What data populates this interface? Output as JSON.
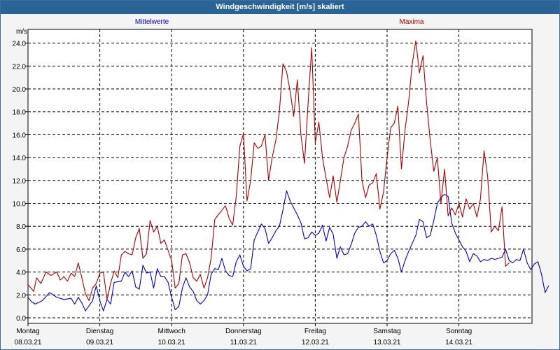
{
  "window": {
    "title": "Windgeschwindigkeit [m/s] skaliert"
  },
  "chart_data": {
    "type": "line",
    "unit_label": "m/s",
    "ylim": [
      0,
      25.2
    ],
    "yticks": [
      0.0,
      2.0,
      4.0,
      6.0,
      8.0,
      10.0,
      12.0,
      14.0,
      16.0,
      18.0,
      20.0,
      22.0,
      24.0
    ],
    "ytick_labels": [
      "0.0",
      "2.0",
      "4.0",
      "6.0",
      "8.0",
      "10.0",
      "12.0",
      "14.0",
      "16.0",
      "18.0",
      "20.0",
      "22.0",
      "24.0"
    ],
    "xlim": [
      0,
      7
    ],
    "days": [
      {
        "day": "Montag",
        "date": "08.03.21"
      },
      {
        "day": "Dienstag",
        "date": "09.03.21"
      },
      {
        "day": "Mittwoch",
        "date": "10.03.21"
      },
      {
        "day": "Donnerstag",
        "date": "11.03.21"
      },
      {
        "day": "Freitag",
        "date": "12.03.21"
      },
      {
        "day": "Samstag",
        "date": "13.03.21"
      },
      {
        "day": "Sonntag",
        "date": "14.03.21"
      }
    ],
    "grid": true,
    "series": [
      {
        "name": "Mittelwerte",
        "color": "#0000cc",
        "points": [
          [
            0.0,
            1.8
          ],
          [
            0.05,
            1.4
          ],
          [
            0.1,
            1.2
          ],
          [
            0.2,
            1.5
          ],
          [
            0.3,
            2.2
          ],
          [
            0.4,
            1.8
          ],
          [
            0.5,
            1.6
          ],
          [
            0.6,
            1.7
          ],
          [
            0.65,
            1.2
          ],
          [
            0.7,
            1.8
          ],
          [
            0.75,
            1.3
          ],
          [
            0.8,
            0.6
          ],
          [
            0.9,
            1.5
          ],
          [
            0.95,
            2.8
          ],
          [
            1.0,
            1.5
          ],
          [
            1.05,
            0.6
          ],
          [
            1.1,
            1.6
          ],
          [
            1.15,
            1.2
          ],
          [
            1.2,
            3.1
          ],
          [
            1.3,
            3.2
          ],
          [
            1.35,
            4.0
          ],
          [
            1.4,
            3.6
          ],
          [
            1.45,
            4.1
          ],
          [
            1.5,
            2.7
          ],
          [
            1.55,
            2.5
          ],
          [
            1.6,
            4.6
          ],
          [
            1.65,
            3.9
          ],
          [
            1.7,
            4.0
          ],
          [
            1.75,
            2.6
          ],
          [
            1.8,
            4.3
          ],
          [
            1.85,
            3.6
          ],
          [
            1.9,
            3.6
          ],
          [
            1.95,
            3.1
          ],
          [
            2.0,
            1.8
          ],
          [
            2.05,
            0.7
          ],
          [
            2.1,
            1.0
          ],
          [
            2.15,
            2.6
          ],
          [
            2.2,
            3.5
          ],
          [
            2.25,
            2.7
          ],
          [
            2.3,
            2.3
          ],
          [
            2.35,
            1.5
          ],
          [
            2.4,
            1.2
          ],
          [
            2.45,
            1.5
          ],
          [
            2.5,
            2.0
          ],
          [
            2.55,
            3.8
          ],
          [
            2.6,
            4.3
          ],
          [
            2.65,
            4.2
          ],
          [
            2.7,
            5.2
          ],
          [
            2.75,
            4.1
          ],
          [
            2.8,
            3.7
          ],
          [
            2.85,
            3.6
          ],
          [
            2.9,
            4.9
          ],
          [
            2.95,
            5.5
          ],
          [
            3.0,
            4.5
          ],
          [
            3.05,
            4.1
          ],
          [
            3.1,
            4.3
          ],
          [
            3.15,
            6.8
          ],
          [
            3.2,
            7.5
          ],
          [
            3.25,
            8.2
          ],
          [
            3.3,
            7.8
          ],
          [
            3.35,
            6.5
          ],
          [
            3.4,
            7.0
          ],
          [
            3.45,
            7.6
          ],
          [
            3.5,
            8.0
          ],
          [
            3.55,
            9.4
          ],
          [
            3.6,
            11.1
          ],
          [
            3.65,
            10.2
          ],
          [
            3.7,
            9.6
          ],
          [
            3.75,
            9.0
          ],
          [
            3.8,
            8.3
          ],
          [
            3.85,
            6.9
          ],
          [
            3.9,
            7.0
          ],
          [
            3.95,
            7.5
          ],
          [
            4.0,
            7.2
          ],
          [
            4.05,
            7.4
          ],
          [
            4.1,
            8.1
          ],
          [
            4.15,
            6.7
          ],
          [
            4.2,
            7.9
          ],
          [
            4.25,
            7.3
          ],
          [
            4.3,
            5.2
          ],
          [
            4.35,
            6.2
          ],
          [
            4.4,
            5.5
          ],
          [
            4.45,
            5.6
          ],
          [
            4.5,
            6.4
          ],
          [
            4.55,
            7.4
          ],
          [
            4.6,
            7.9
          ],
          [
            4.65,
            8.0
          ],
          [
            4.7,
            8.4
          ],
          [
            4.75,
            8.0
          ],
          [
            4.8,
            8.2
          ],
          [
            4.85,
            7.2
          ],
          [
            4.9,
            5.8
          ],
          [
            4.95,
            4.8
          ],
          [
            5.0,
            5.0
          ],
          [
            5.05,
            5.6
          ],
          [
            5.1,
            5.9
          ],
          [
            5.15,
            5.2
          ],
          [
            5.2,
            4.0
          ],
          [
            5.25,
            5.0
          ],
          [
            5.3,
            5.8
          ],
          [
            5.35,
            6.5
          ],
          [
            5.4,
            7.2
          ],
          [
            5.45,
            8.6
          ],
          [
            5.5,
            8.4
          ],
          [
            5.55,
            7.0
          ],
          [
            5.6,
            7.2
          ],
          [
            5.65,
            8.5
          ],
          [
            5.7,
            10.0
          ],
          [
            5.75,
            10.5
          ],
          [
            5.8,
            10.8
          ],
          [
            5.85,
            10.6
          ],
          [
            5.9,
            8.3
          ],
          [
            5.95,
            7.4
          ],
          [
            6.0,
            6.8
          ],
          [
            6.05,
            6.2
          ],
          [
            6.1,
            5.8
          ],
          [
            6.15,
            4.9
          ],
          [
            6.2,
            5.6
          ],
          [
            6.25,
            5.4
          ],
          [
            6.3,
            4.9
          ],
          [
            6.35,
            5.1
          ],
          [
            6.4,
            5.0
          ],
          [
            6.45,
            5.2
          ],
          [
            6.5,
            5.1
          ],
          [
            6.55,
            5.2
          ],
          [
            6.6,
            5.3
          ],
          [
            6.65,
            6.0
          ],
          [
            6.7,
            5.0
          ],
          [
            6.75,
            4.8
          ],
          [
            6.8,
            5.1
          ],
          [
            6.85,
            5.0
          ],
          [
            6.9,
            6.0
          ],
          [
            6.95,
            4.8
          ],
          [
            7.0,
            4.2
          ],
          [
            7.05,
            4.7
          ],
          [
            7.1,
            4.9
          ],
          [
            7.15,
            3.8
          ],
          [
            7.2,
            2.2
          ],
          [
            7.25,
            2.8
          ]
        ]
      },
      {
        "name": "Maxima",
        "color": "#aa0000",
        "points": [
          [
            0.0,
            2.9
          ],
          [
            0.08,
            2.3
          ],
          [
            0.12,
            3.5
          ],
          [
            0.18,
            3.0
          ],
          [
            0.25,
            4.0
          ],
          [
            0.32,
            3.7
          ],
          [
            0.4,
            4.0
          ],
          [
            0.45,
            3.3
          ],
          [
            0.5,
            3.6
          ],
          [
            0.55,
            3.2
          ],
          [
            0.6,
            3.9
          ],
          [
            0.65,
            3.6
          ],
          [
            0.7,
            4.8
          ],
          [
            0.75,
            3.5
          ],
          [
            0.8,
            2.1
          ],
          [
            0.85,
            1.5
          ],
          [
            0.9,
            2.6
          ],
          [
            0.95,
            3.0
          ],
          [
            1.0,
            3.9
          ],
          [
            1.05,
            4.0
          ],
          [
            1.1,
            1.6
          ],
          [
            1.15,
            3.0
          ],
          [
            1.2,
            4.1
          ],
          [
            1.25,
            3.5
          ],
          [
            1.3,
            5.5
          ],
          [
            1.35,
            5.8
          ],
          [
            1.4,
            5.6
          ],
          [
            1.45,
            5.5
          ],
          [
            1.5,
            7.0
          ],
          [
            1.55,
            7.8
          ],
          [
            1.6,
            5.2
          ],
          [
            1.65,
            5.6
          ],
          [
            1.7,
            8.5
          ],
          [
            1.75,
            7.5
          ],
          [
            1.8,
            8.0
          ],
          [
            1.85,
            6.5
          ],
          [
            1.9,
            6.8
          ],
          [
            1.95,
            5.9
          ],
          [
            2.0,
            5.0
          ],
          [
            2.05,
            2.6
          ],
          [
            2.1,
            3.0
          ],
          [
            2.15,
            5.5
          ],
          [
            2.2,
            5.6
          ],
          [
            2.25,
            4.8
          ],
          [
            2.3,
            3.5
          ],
          [
            2.35,
            3.2
          ],
          [
            2.4,
            3.8
          ],
          [
            2.45,
            2.6
          ],
          [
            2.5,
            3.5
          ],
          [
            2.55,
            5.2
          ],
          [
            2.6,
            8.6
          ],
          [
            2.65,
            9.0
          ],
          [
            2.7,
            9.4
          ],
          [
            2.75,
            9.8
          ],
          [
            2.8,
            8.7
          ],
          [
            2.85,
            8.1
          ],
          [
            2.9,
            10.6
          ],
          [
            2.95,
            15.0
          ],
          [
            3.0,
            16.1
          ],
          [
            3.05,
            10.2
          ],
          [
            3.1,
            12.0
          ],
          [
            3.15,
            15.3
          ],
          [
            3.2,
            14.8
          ],
          [
            3.25,
            15.0
          ],
          [
            3.3,
            16.0
          ],
          [
            3.35,
            12.0
          ],
          [
            3.4,
            14.0
          ],
          [
            3.45,
            15.5
          ],
          [
            3.5,
            18.0
          ],
          [
            3.55,
            22.2
          ],
          [
            3.6,
            21.5
          ],
          [
            3.65,
            19.8
          ],
          [
            3.7,
            17.6
          ],
          [
            3.75,
            20.8
          ],
          [
            3.8,
            16.0
          ],
          [
            3.85,
            13.5
          ],
          [
            3.9,
            18.7
          ],
          [
            3.95,
            23.6
          ],
          [
            4.0,
            15.3
          ],
          [
            4.05,
            17.1
          ],
          [
            4.1,
            14.0
          ],
          [
            4.15,
            12.2
          ],
          [
            4.2,
            10.5
          ],
          [
            4.25,
            12.4
          ],
          [
            4.3,
            10.1
          ],
          [
            4.35,
            12.0
          ],
          [
            4.4,
            14.0
          ],
          [
            4.45,
            15.0
          ],
          [
            4.5,
            16.4
          ],
          [
            4.55,
            17.0
          ],
          [
            4.6,
            17.8
          ],
          [
            4.65,
            12.0
          ],
          [
            4.7,
            10.5
          ],
          [
            4.75,
            11.6
          ],
          [
            4.8,
            11.8
          ],
          [
            4.85,
            12.6
          ],
          [
            4.9,
            9.5
          ],
          [
            4.95,
            11.0
          ],
          [
            5.0,
            14.0
          ],
          [
            5.05,
            16.6
          ],
          [
            5.1,
            17.0
          ],
          [
            5.15,
            18.5
          ],
          [
            5.2,
            13.0
          ],
          [
            5.25,
            16.4
          ],
          [
            5.3,
            18.9
          ],
          [
            5.35,
            22.2
          ],
          [
            5.4,
            24.2
          ],
          [
            5.45,
            21.4
          ],
          [
            5.5,
            22.9
          ],
          [
            5.55,
            18.8
          ],
          [
            5.6,
            15.5
          ],
          [
            5.65,
            12.8
          ],
          [
            5.7,
            14.0
          ],
          [
            5.75,
            10.0
          ],
          [
            5.8,
            13.0
          ],
          [
            5.85,
            8.9
          ],
          [
            5.9,
            9.6
          ],
          [
            5.95,
            9.0
          ],
          [
            6.0,
            10.0
          ],
          [
            6.05,
            8.8
          ],
          [
            6.1,
            10.4
          ],
          [
            6.15,
            9.5
          ],
          [
            6.2,
            10.0
          ],
          [
            6.25,
            8.8
          ],
          [
            6.3,
            10.4
          ],
          [
            6.35,
            14.6
          ],
          [
            6.4,
            12.4
          ],
          [
            6.45,
            7.5
          ],
          [
            6.5,
            8.0
          ],
          [
            6.55,
            7.6
          ],
          [
            6.6,
            9.7
          ],
          [
            6.65,
            4.5
          ],
          [
            6.7,
            4.8
          ]
        ]
      }
    ]
  }
}
